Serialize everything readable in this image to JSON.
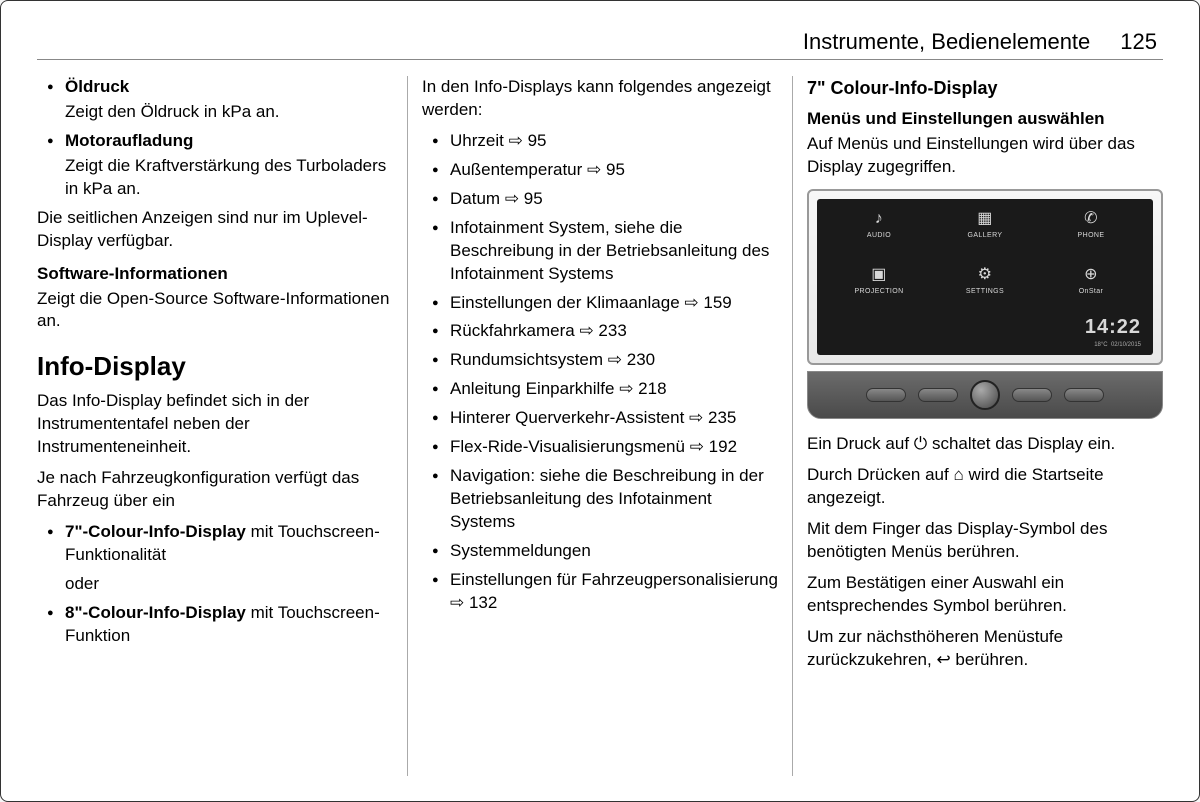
{
  "header": {
    "title": "Instrumente, Bedienelemente",
    "pageNumber": "125"
  },
  "col1": {
    "items": [
      {
        "label": "Öldruck",
        "desc": "Zeigt den Öldruck in kPa an."
      },
      {
        "label": "Motoraufladung",
        "desc": "Zeigt die Kraftverstärkung des Turboladers in kPa an."
      }
    ],
    "sideNote": "Die seitlichen Anzeigen sind nur im Uplevel-Display verfügbar.",
    "swHead": "Software-Informationen",
    "swBody": "Zeigt die Open-Source Software-Informationen an.",
    "infoHeading": "Info-Display",
    "infoP1": "Das Info-Display befindet sich in der Instrumententafel neben der Instrumenteneinheit.",
    "infoP2": "Je nach Fahrzeugkonfiguration verfügt das Fahrzeug über ein",
    "displayOptions": [
      {
        "bold": "7\"-Colour-Info-Display",
        "tail": " mit Touchscreen-Funktionalität",
        "after": "oder"
      },
      {
        "bold": "8\"-Colour-Info-Display",
        "tail": " mit Touchscreen-Funktion",
        "after": ""
      }
    ]
  },
  "col2": {
    "intro": "In den Info-Displays kann folgendes angezeigt werden:",
    "items": [
      {
        "text": "Uhrzeit",
        "ref": "95"
      },
      {
        "text": "Außentemperatur",
        "ref": "95"
      },
      {
        "text": "Datum",
        "ref": "95"
      },
      {
        "text": "Infotainment System, siehe die Beschreibung in der Betriebsanleitung des Infotainment Systems",
        "ref": ""
      },
      {
        "text": "Einstellungen der Klimaanlage",
        "ref": "159"
      },
      {
        "text": "Rückfahrkamera",
        "ref": "233"
      },
      {
        "text": "Rundumsichtsystem",
        "ref": "230"
      },
      {
        "text": "Anleitung Einparkhilfe",
        "ref": "218"
      },
      {
        "text": "Hinterer Querverkehr-Assistent",
        "ref": "235"
      },
      {
        "text": "Flex-Ride-Visualisierungsmenü",
        "ref": "192"
      },
      {
        "text": "Navigation: siehe die Beschreibung in der Betriebsanleitung des Infotainment Systems",
        "ref": ""
      },
      {
        "text": "Systemmeldungen",
        "ref": ""
      },
      {
        "text": "Einstellungen für Fahrzeugpersonalisierung",
        "ref": "132"
      }
    ]
  },
  "col3": {
    "heading": "7\" Colour-Info-Display",
    "sub": "Menüs und Einstellungen auswählen",
    "subBody": "Auf Menüs und Einstellungen wird über das Display zugegriffen.",
    "screen": {
      "icons": [
        {
          "glyph": "♪",
          "label": "AUDIO"
        },
        {
          "glyph": "▦",
          "label": "GALLERY"
        },
        {
          "glyph": "✆",
          "label": "PHONE"
        },
        {
          "glyph": "▣",
          "label": "PROJECTION"
        },
        {
          "glyph": "⚙",
          "label": "SETTINGS"
        },
        {
          "glyph": "⊕",
          "label": "OnStar"
        }
      ],
      "time": "14:22",
      "temp": "18°C",
      "date": "02/10/2015"
    },
    "p1a": "Ein Druck auf ",
    "p1sym": "⏻",
    "p1b": " schaltet das Display ein.",
    "p2a": "Durch Drücken auf ",
    "p2sym": "⌂",
    "p2b": " wird die Startseite angezeigt.",
    "p3": "Mit dem Finger das Display-Symbol des benötigten Menüs berühren.",
    "p4": "Zum Bestätigen einer Auswahl ein entsprechendes Symbol berühren.",
    "p5a": "Um zur nächsthöheren Menüstufe zurückzukehren, ",
    "p5sym": "↩",
    "p5b": " berühren."
  }
}
